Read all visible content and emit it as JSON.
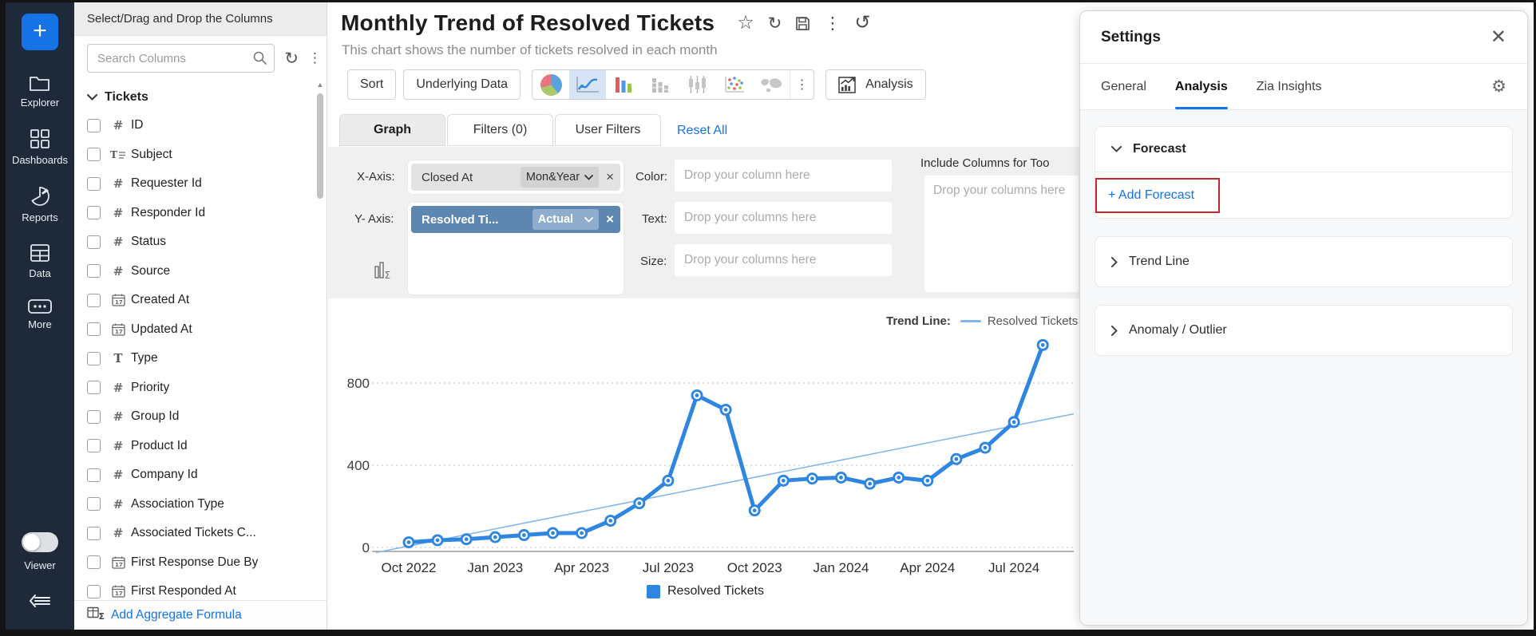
{
  "rail": {
    "plus_label": "+",
    "items": [
      {
        "id": "explorer",
        "label": "Explorer",
        "icon": "folder-icon"
      },
      {
        "id": "dashboards",
        "label": "Dashboards",
        "icon": "grid-icon"
      },
      {
        "id": "reports",
        "label": "Reports",
        "icon": "pie-icon"
      },
      {
        "id": "data",
        "label": "Data",
        "icon": "table-icon"
      },
      {
        "id": "more",
        "label": "More",
        "icon": "ellipsis-icon"
      }
    ],
    "viewer_label": "Viewer",
    "viewer_state": "off"
  },
  "columns_panel": {
    "header": "Select/Drag and Drop the Columns",
    "search_placeholder": "Search Columns",
    "group_label": "Tickets",
    "columns": [
      {
        "name": "ID",
        "type": "number"
      },
      {
        "name": "Subject",
        "type": "text"
      },
      {
        "name": "Requester Id",
        "type": "number"
      },
      {
        "name": "Responder Id",
        "type": "number"
      },
      {
        "name": "Status",
        "type": "number"
      },
      {
        "name": "Source",
        "type": "number"
      },
      {
        "name": "Created At",
        "type": "date"
      },
      {
        "name": "Updated At",
        "type": "date"
      },
      {
        "name": "Type",
        "type": "string"
      },
      {
        "name": "Priority",
        "type": "number"
      },
      {
        "name": "Group Id",
        "type": "number"
      },
      {
        "name": "Product Id",
        "type": "number"
      },
      {
        "name": "Company Id",
        "type": "number"
      },
      {
        "name": "Association Type",
        "type": "number"
      },
      {
        "name": "Associated Tickets C...",
        "type": "number"
      },
      {
        "name": "First Response Due By",
        "type": "date"
      },
      {
        "name": "First Responded At",
        "type": "date"
      }
    ],
    "footer_label": "Add Aggregate Formula"
  },
  "report": {
    "title": "Monthly Trend of Resolved Tickets",
    "subtitle": "This chart shows the number of tickets resolved in each month"
  },
  "toolbar": {
    "sort_label": "Sort",
    "underlying_label": "Underlying Data",
    "analysis_label": "Analysis",
    "chart_types": [
      {
        "id": "pie",
        "selected": false
      },
      {
        "id": "line",
        "selected": true
      },
      {
        "id": "bar",
        "selected": false
      },
      {
        "id": "stacked-bar",
        "selected": false
      },
      {
        "id": "candlestick",
        "selected": false
      },
      {
        "id": "scatter",
        "selected": false
      },
      {
        "id": "map",
        "selected": false
      }
    ]
  },
  "tabs": {
    "graph": "Graph",
    "filters": "Filters  (0)",
    "user_filters": "User Filters",
    "reset_all": "Reset All"
  },
  "config": {
    "x_label": "X-Axis:",
    "x_chip": {
      "field": "Closed At",
      "aggregation": "Mon&Year"
    },
    "y_label": "Y- Axis:",
    "y_chip": {
      "field": "Resolved Ti...",
      "aggregation": "Actual"
    },
    "color_label": "Color:",
    "color_placeholder": "Drop your column here",
    "text_label": "Text:",
    "text_placeholder": "Drop your columns here",
    "size_label": "Size:",
    "size_placeholder": "Drop your columns here",
    "tooltip_title": "Include Columns for Too",
    "tooltip_placeholder": "Drop your columns here"
  },
  "chart_data": {
    "type": "line",
    "series_name": "Resolved Tickets",
    "categories": [
      "Oct 2022",
      "Nov 2022",
      "Dec 2022",
      "Jan 2023",
      "Feb 2023",
      "Mar 2023",
      "Apr 2023",
      "May 2023",
      "Jun 2023",
      "Jul 2023",
      "Aug 2023",
      "Sep 2023",
      "Oct 2023",
      "Nov 2023",
      "Dec 2023",
      "Jan 2024",
      "Feb 2024",
      "Mar 2024",
      "Apr 2024",
      "May 2024",
      "Jun 2024",
      "Jul 2024",
      "Aug 2024"
    ],
    "values": [
      25,
      35,
      40,
      50,
      60,
      70,
      70,
      130,
      215,
      325,
      740,
      670,
      180,
      325,
      335,
      340,
      310,
      340,
      325,
      430,
      485,
      610,
      985
    ],
    "x_tick_indices": [
      0,
      3,
      6,
      9,
      12,
      15,
      18,
      21
    ],
    "x_tick_labels": [
      "Oct 2022",
      "Jan 2023",
      "Apr 2023",
      "Jul 2023",
      "Oct 2023",
      "Jan 2024",
      "Apr 2024",
      "Jul 2024"
    ],
    "yticks": [
      0,
      400,
      800
    ],
    "ylim": [
      0,
      1200
    ],
    "grid": "dashed-horizontal",
    "trend_line": {
      "label": "Trend Line:",
      "series": "Resolved Tickets",
      "start_value": -25,
      "end_value": 650
    },
    "legend_label": "Resolved Tickets",
    "series_color": "#2e86e0",
    "trend_color": "#7fb5ea"
  },
  "settings": {
    "title": "Settings",
    "tabs": [
      "General",
      "Analysis",
      "Zia Insights"
    ],
    "active_tab": "Analysis",
    "sections": [
      {
        "id": "forecast",
        "label": "Forecast",
        "expanded": true,
        "action_label": "+ Add Forecast",
        "action_highlighted": true
      },
      {
        "id": "trend-line",
        "label": "Trend Line",
        "expanded": false
      },
      {
        "id": "anomaly-outlier",
        "label": "Anomaly / Outlier",
        "expanded": false
      }
    ]
  }
}
